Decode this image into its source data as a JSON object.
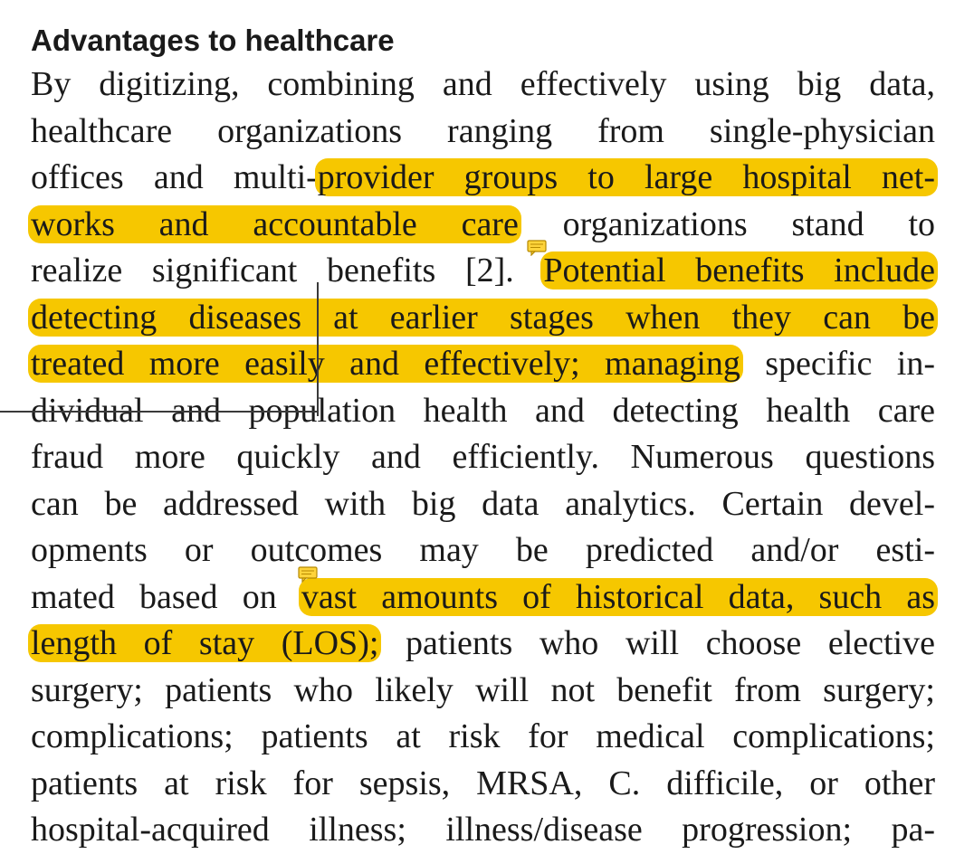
{
  "section": {
    "heading": "Advantages to healthcare"
  },
  "paragraph": {
    "lines": [
      "By digitizing, combining and effectively using big data,",
      "healthcare organizations ranging from single-physician",
      [
        "offices and multi-",
        "provider groups to large hospital net-"
      ],
      [
        "works and accountable care",
        " organizations stand to"
      ],
      [
        "realize significant benefits [2]. ",
        "Potential benefits include"
      ],
      "detecting diseases at earlier stages when they can be",
      [
        "treated more easily and effectively; managing",
        " specific in-"
      ],
      "dividual and population health and detecting health care",
      "fraud more quickly and efficiently. Numerous questions",
      "can be addressed with big data analytics. Certain devel-",
      "opments or outcomes may be predicted and/or esti-",
      [
        "mated based on ",
        "vast amounts of historical data, such as"
      ],
      [
        "length of stay (LOS);",
        " patients who will choose elective"
      ],
      "surgery; patients who likely will not benefit from surgery;",
      "complications; patients at risk for medical complications;",
      "patients at risk for sepsis, MRSA, C. difficile, or other",
      "hospital-acquired illness; illness/disease progression; pa-"
    ]
  },
  "annotations": {
    "highlight_color": "#f6c700",
    "note_icon": "comment-note-icon"
  }
}
